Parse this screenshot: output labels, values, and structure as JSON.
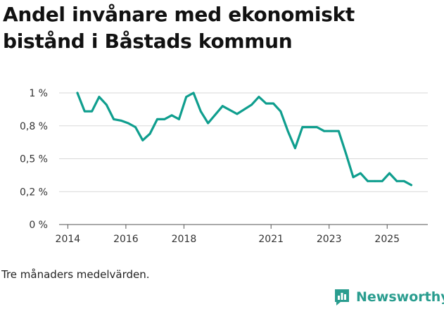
{
  "footnote": "Tre månaders medelvärden.",
  "brand": {
    "name": "Newsworthy",
    "icon": "newsworthy-logo-icon",
    "color": "#2a9d8f"
  },
  "colors": {
    "line": "#0f9e8e",
    "grid": "#d9d9d9",
    "axis": "#555555",
    "text": "#333333"
  },
  "chart_data": {
    "type": "line",
    "title": "Andel invånare med ekonomiskt bistånd i Båstads kommun",
    "xlabel": "",
    "ylabel": "",
    "xlim": [
      2013.7,
      2026.4
    ],
    "ylim": [
      0,
      1
    ],
    "grid": true,
    "legend": "none",
    "x_ticks": [
      {
        "value": 2014,
        "label": "2014"
      },
      {
        "value": 2016,
        "label": "2016"
      },
      {
        "value": 2018,
        "label": "2018"
      },
      {
        "value": 2021,
        "label": "2021"
      },
      {
        "value": 2023,
        "label": "2023"
      },
      {
        "value": 2025,
        "label": "2025"
      }
    ],
    "y_ticks": [
      {
        "value": 0,
        "label": "0 %"
      },
      {
        "value": 0.25,
        "label": "0,2 %"
      },
      {
        "value": 0.5,
        "label": "0,5 %"
      },
      {
        "value": 0.75,
        "label": "0,8 %"
      },
      {
        "value": 1,
        "label": "1 %"
      }
    ],
    "series": [
      {
        "name": "Andel invånare med ekonomiskt bistånd",
        "x": [
          2014.33,
          2014.58,
          2014.83,
          2015.08,
          2015.33,
          2015.58,
          2015.83,
          2016.08,
          2016.33,
          2016.58,
          2016.83,
          2017.08,
          2017.33,
          2017.58,
          2017.83,
          2018.08,
          2018.33,
          2018.58,
          2018.83,
          2019.33,
          2019.83,
          2020.33,
          2020.58,
          2020.83,
          2021.08,
          2021.33,
          2021.58,
          2021.83,
          2022.08,
          2022.33,
          2022.58,
          2022.83,
          2023.08,
          2023.33,
          2023.58,
          2023.83,
          2024.08,
          2024.33,
          2024.58,
          2024.83,
          2025.08,
          2025.33,
          2025.58,
          2025.83
        ],
        "values": [
          1.0,
          0.86,
          0.86,
          0.97,
          0.91,
          0.8,
          0.79,
          0.77,
          0.74,
          0.64,
          0.69,
          0.8,
          0.8,
          0.83,
          0.8,
          0.97,
          1.0,
          0.86,
          0.77,
          0.9,
          0.84,
          0.91,
          0.97,
          0.92,
          0.92,
          0.86,
          0.71,
          0.58,
          0.74,
          0.74,
          0.74,
          0.71,
          0.71,
          0.71,
          0.54,
          0.36,
          0.39,
          0.33,
          0.33,
          0.33,
          0.39,
          0.33,
          0.33,
          0.3
        ]
      }
    ]
  }
}
